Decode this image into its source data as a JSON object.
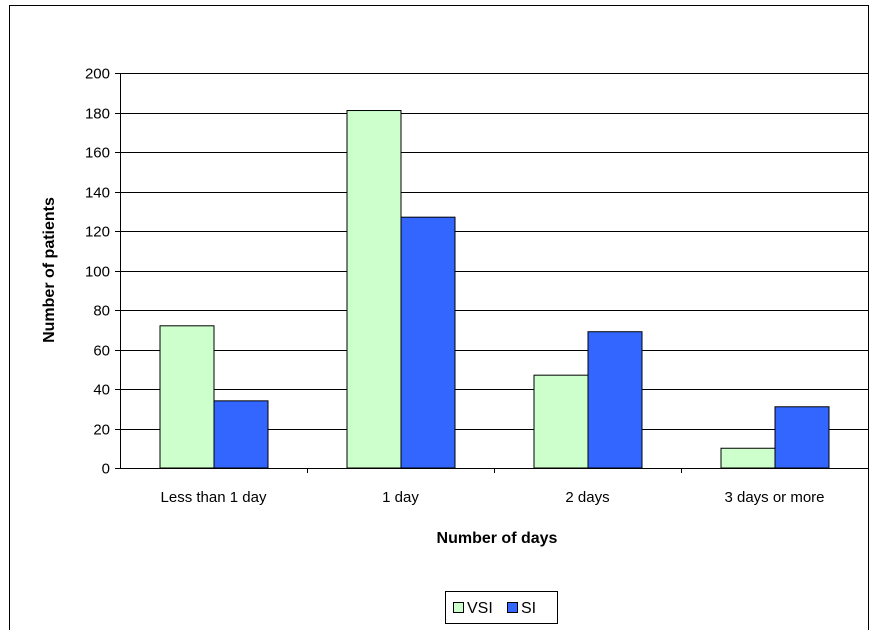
{
  "chart_data": {
    "type": "bar",
    "title": "",
    "xlabel": "Number of days",
    "ylabel": "Number of patients",
    "categories": [
      "Less than 1 day",
      "1 day",
      "2 days",
      "3 days or more"
    ],
    "series": [
      {
        "name": "VSI",
        "values": [
          72,
          181,
          47,
          10
        ],
        "color": "#ccffcc"
      },
      {
        "name": "SI",
        "values": [
          34,
          127,
          69,
          31
        ],
        "color": "#3366ff"
      }
    ],
    "ylim": [
      0,
      200
    ],
    "yticks": [
      0,
      20,
      40,
      60,
      80,
      100,
      120,
      140,
      160,
      180,
      200
    ],
    "grid": true,
    "legend_position": "bottom"
  }
}
